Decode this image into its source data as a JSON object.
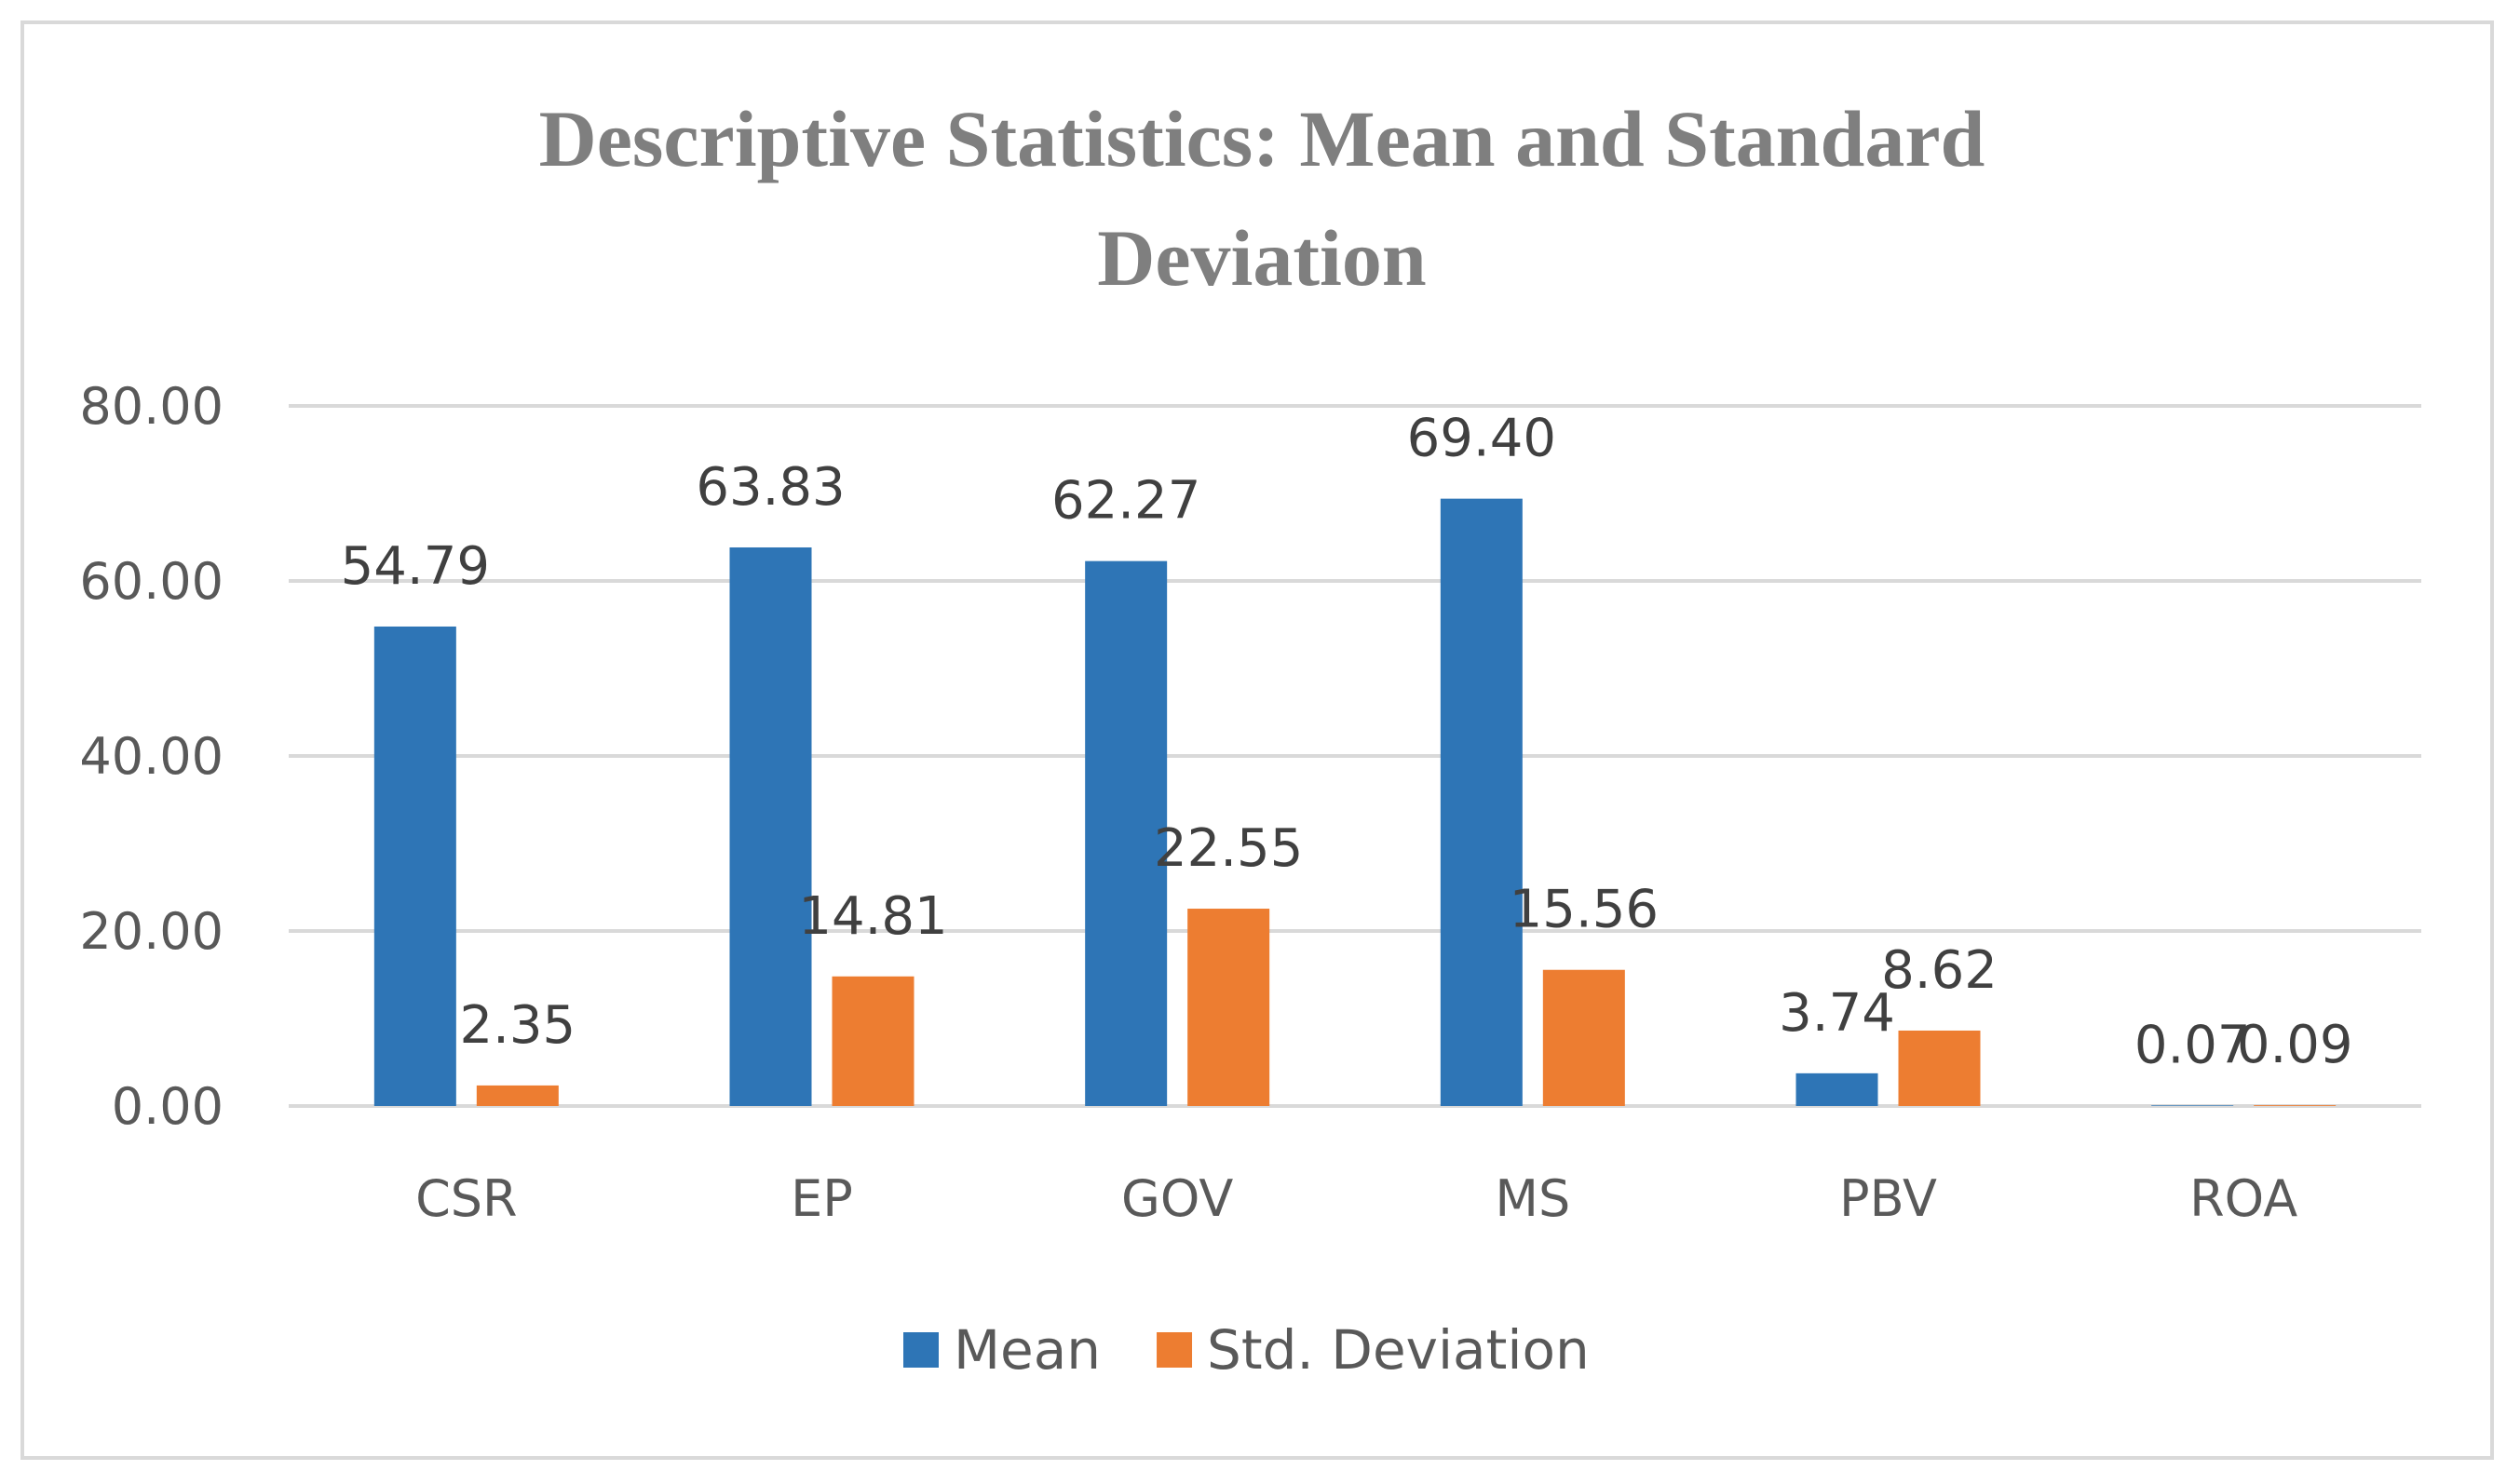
{
  "chart_data": {
    "type": "bar",
    "title_lines": [
      "Descriptive Statistics: Mean and Standard",
      "Deviation"
    ],
    "categories": [
      "CSR",
      "EP",
      "GOV",
      "MS",
      "PBV",
      "ROA"
    ],
    "series": [
      {
        "name": "Mean",
        "color": "#2e75b6",
        "values": [
          54.79,
          63.83,
          62.27,
          69.4,
          3.74,
          0.07
        ],
        "labels": [
          "54.79",
          "63.83",
          "62.27",
          "69.40",
          "3.74",
          "0.07"
        ]
      },
      {
        "name": "Std. Deviation",
        "color": "#ed7d31",
        "values": [
          2.35,
          14.81,
          22.55,
          15.56,
          8.62,
          0.09
        ],
        "labels": [
          "2.35",
          "14.81",
          "22.55",
          "15.56",
          "8.62",
          "0.09"
        ]
      }
    ],
    "ylim": [
      0,
      80
    ],
    "yticks": [
      "0.00",
      "20.00",
      "40.00",
      "60.00",
      "80.00"
    ],
    "grid": true,
    "legend_position": "bottom",
    "gridline_color": "#d9d9d9"
  }
}
